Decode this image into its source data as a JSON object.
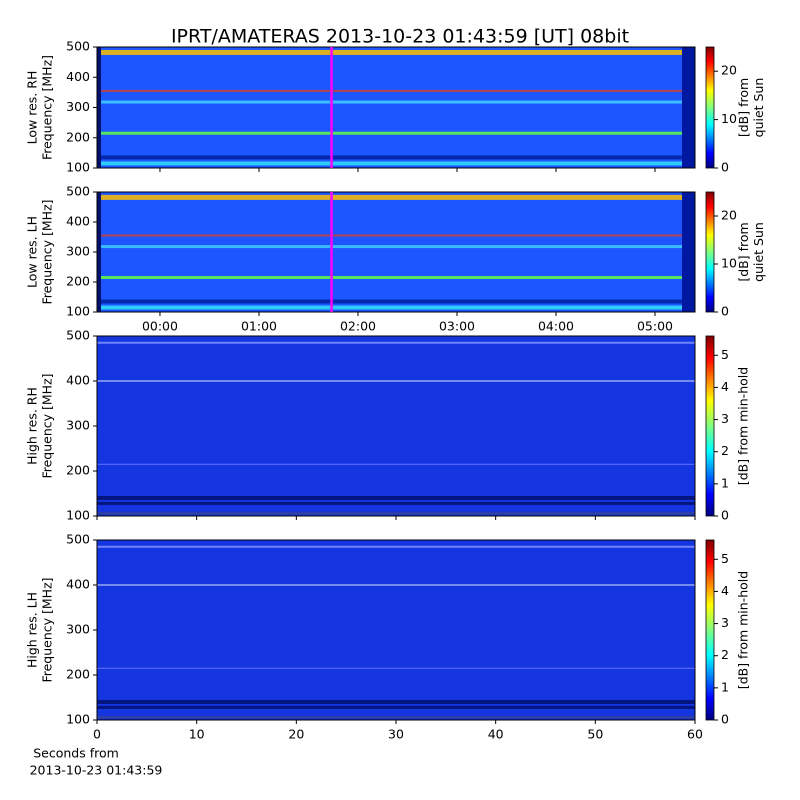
{
  "chart_data": [
    {
      "type": "heatmap",
      "title": "IPRT/AMATERAS 2013-10-23 01:43:59 [UT]   08bit",
      "ylabel": [
        "Low res. RH",
        "Frequency [MHz]"
      ],
      "ylim": [
        100,
        500
      ],
      "yticks": [
        100,
        200,
        300,
        400,
        500
      ],
      "xlim": [
        -0.636,
        5.404
      ],
      "colorbar": {
        "label": [
          "[dB] from",
          "quiet Sun"
        ],
        "lim": [
          0,
          25
        ],
        "ticks": [
          0,
          10,
          20
        ]
      },
      "vline": {
        "x": 1.7331,
        "color": "#ff00ff"
      }
    },
    {
      "type": "heatmap",
      "ylabel": [
        "Low res. LH",
        "Frequency [MHz]"
      ],
      "ylim": [
        100,
        500
      ],
      "yticks": [
        100,
        200,
        300,
        400,
        500
      ],
      "xlim": [
        -0.636,
        5.404
      ],
      "xticks": [
        {
          "value": 0,
          "label": "00:00"
        },
        {
          "value": 1,
          "label": "01:00"
        },
        {
          "value": 2,
          "label": "02:00"
        },
        {
          "value": 3,
          "label": "03:00"
        },
        {
          "value": 4,
          "label": "04:00"
        },
        {
          "value": 5,
          "label": "05:00"
        }
      ],
      "colorbar": {
        "label": [
          "[dB] from",
          "quiet Sun"
        ],
        "lim": [
          0,
          25
        ],
        "ticks": [
          0,
          10,
          20
        ]
      },
      "vline": {
        "x": 1.7331,
        "color": "#ff00ff"
      }
    },
    {
      "type": "heatmap",
      "ylabel": [
        "High res. RH",
        "Frequency [MHz]"
      ],
      "ylim": [
        100,
        500
      ],
      "yticks": [
        100,
        200,
        300,
        400,
        500
      ],
      "xlim": [
        0,
        60
      ],
      "colorbar": {
        "label": [
          "[dB] from min-hold"
        ],
        "lim": [
          0,
          5.6
        ],
        "ticks": [
          0,
          1,
          2,
          3,
          4,
          5
        ]
      }
    },
    {
      "type": "heatmap",
      "ylabel": [
        "High res. LH",
        "Frequency [MHz]"
      ],
      "ylim": [
        100,
        500
      ],
      "yticks": [
        100,
        200,
        300,
        400,
        500
      ],
      "xlim": [
        0,
        60
      ],
      "xticks": [
        0,
        10,
        20,
        30,
        40,
        50,
        60
      ],
      "xlabel": [
        "Seconds from",
        "2013-10-23 01:43:59"
      ],
      "colorbar": {
        "label": [
          "[dB] from min-hold"
        ],
        "lim": [
          0,
          5.6
        ],
        "ticks": [
          0,
          1,
          2,
          3,
          4,
          5
        ]
      }
    }
  ]
}
